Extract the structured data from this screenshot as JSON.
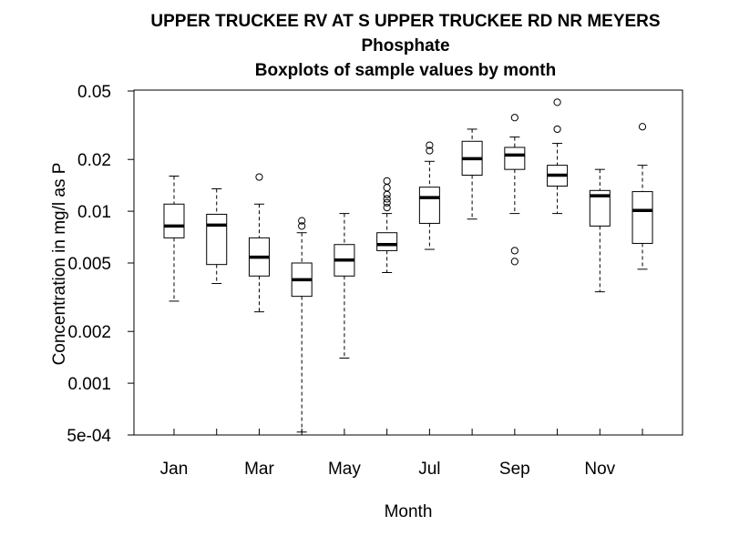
{
  "chart_data": {
    "type": "boxplot",
    "title_lines": [
      "UPPER TRUCKEE RV AT S UPPER TRUCKEE RD NR MEYERS",
      "Phosphate",
      "Boxplots of sample values by month"
    ],
    "xlabel": "Month",
    "ylabel": "Concentration in mg/l as P",
    "y_scale": "log",
    "ylim": [
      0.0005,
      0.05
    ],
    "y_ticks": [
      {
        "value": 0.05,
        "label": "0.05"
      },
      {
        "value": 0.02,
        "label": "0.02"
      },
      {
        "value": 0.01,
        "label": "0.01"
      },
      {
        "value": 0.005,
        "label": "0.005"
      },
      {
        "value": 0.002,
        "label": "0.002"
      },
      {
        "value": 0.001,
        "label": "0.001"
      },
      {
        "value": 0.0005,
        "label": "5e-04"
      }
    ],
    "x_tick_labels": [
      {
        "month": 1,
        "label": "Jan"
      },
      {
        "month": 3,
        "label": "Mar"
      },
      {
        "month": 5,
        "label": "May"
      },
      {
        "month": 7,
        "label": "Jul"
      },
      {
        "month": 9,
        "label": "Sep"
      },
      {
        "month": 11,
        "label": "Nov"
      }
    ],
    "grid": false,
    "boxes": [
      {
        "month": 1,
        "whisker_low": 0.003,
        "q1": 0.007,
        "median": 0.0082,
        "q3": 0.011,
        "whisker_high": 0.016,
        "outliers": []
      },
      {
        "month": 2,
        "whisker_low": 0.0038,
        "q1": 0.0049,
        "median": 0.0083,
        "q3": 0.0096,
        "whisker_high": 0.0135,
        "outliers": []
      },
      {
        "month": 3,
        "whisker_low": 0.0026,
        "q1": 0.0042,
        "median": 0.0054,
        "q3": 0.007,
        "whisker_high": 0.011,
        "outliers": [
          0.0158
        ]
      },
      {
        "month": 4,
        "whisker_low": 0.00052,
        "q1": 0.0032,
        "median": 0.004,
        "q3": 0.005,
        "whisker_high": 0.0075,
        "outliers": [
          0.0082,
          0.0088
        ]
      },
      {
        "month": 5,
        "whisker_low": 0.0014,
        "q1": 0.0042,
        "median": 0.0052,
        "q3": 0.0064,
        "whisker_high": 0.0097,
        "outliers": []
      },
      {
        "month": 6,
        "whisker_low": 0.0044,
        "q1": 0.0059,
        "median": 0.0064,
        "q3": 0.0075,
        "whisker_high": 0.0097,
        "outliers": [
          0.0105,
          0.0112,
          0.0118,
          0.0125,
          0.0137,
          0.015
        ]
      },
      {
        "month": 7,
        "whisker_low": 0.006,
        "q1": 0.0085,
        "median": 0.012,
        "q3": 0.0138,
        "whisker_high": 0.0195,
        "outliers": [
          0.0225,
          0.0242
        ]
      },
      {
        "month": 8,
        "whisker_low": 0.009,
        "q1": 0.0162,
        "median": 0.0202,
        "q3": 0.0255,
        "whisker_high": 0.03,
        "outliers": []
      },
      {
        "month": 9,
        "whisker_low": 0.0097,
        "q1": 0.0175,
        "median": 0.0212,
        "q3": 0.0235,
        "whisker_high": 0.027,
        "outliers": [
          0.0051,
          0.0059,
          0.035
        ]
      },
      {
        "month": 10,
        "whisker_low": 0.0097,
        "q1": 0.014,
        "median": 0.0162,
        "q3": 0.0185,
        "whisker_high": 0.0248,
        "outliers": [
          0.03,
          0.043
        ]
      },
      {
        "month": 11,
        "whisker_low": 0.0034,
        "q1": 0.0082,
        "median": 0.0123,
        "q3": 0.0132,
        "whisker_high": 0.0175,
        "outliers": []
      },
      {
        "month": 12,
        "whisker_low": 0.0046,
        "q1": 0.0065,
        "median": 0.0101,
        "q3": 0.013,
        "whisker_high": 0.0185,
        "outliers": [
          0.031
        ]
      }
    ],
    "colors": {
      "ink": "#000000",
      "background": "#ffffff"
    }
  }
}
